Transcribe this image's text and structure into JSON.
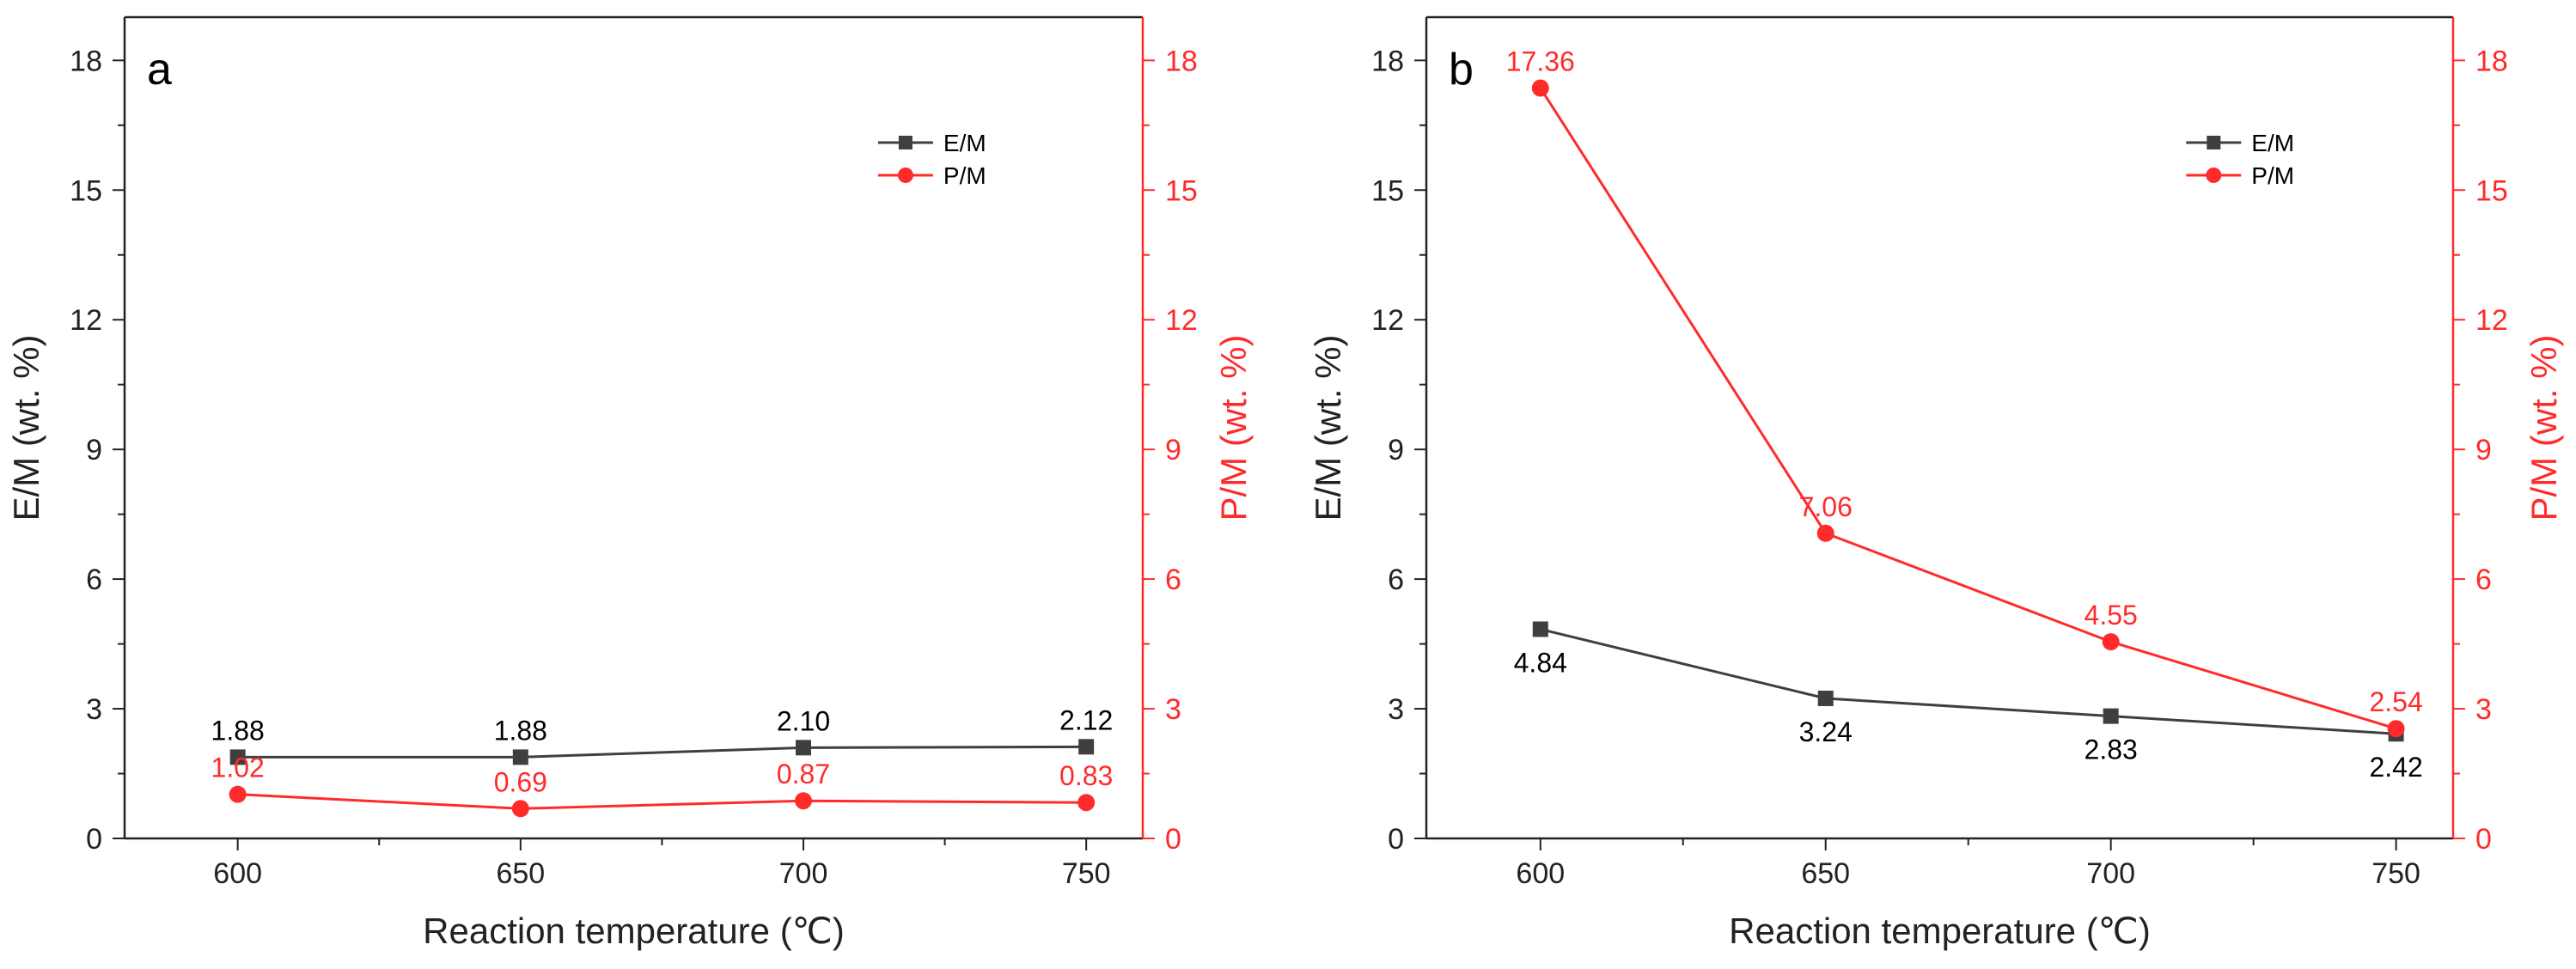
{
  "colors": {
    "left_series": "#3f3f3f",
    "right_series": "#ff2b2b",
    "axis": "#222222",
    "right_axis": "#ff2b2b"
  },
  "chart_data": [
    {
      "type": "line",
      "panel_label": "a",
      "xlabel": "Reaction temperature (℃)",
      "ylabel_left": "E/M (wt. %)",
      "ylabel_right": "P/M (wt. %)",
      "x": [
        600,
        650,
        700,
        750
      ],
      "xlim": [
        580,
        760
      ],
      "ylim_left": [
        0,
        19
      ],
      "ylim_right": [
        0,
        19
      ],
      "yticks": [
        0,
        3,
        6,
        9,
        12,
        15,
        18
      ],
      "legend_position": "top-right",
      "grid": false,
      "series": [
        {
          "name": "E/M",
          "axis": "left",
          "marker": "square",
          "values": [
            1.88,
            1.88,
            2.1,
            2.12
          ],
          "labels": [
            "1.88",
            "1.88",
            "2.10",
            "2.12"
          ],
          "label_side": [
            "above",
            "above",
            "above",
            "above"
          ]
        },
        {
          "name": "P/M",
          "axis": "right",
          "marker": "circle",
          "values": [
            1.02,
            0.69,
            0.87,
            0.83
          ],
          "labels": [
            "1.02",
            "0.69",
            "0.87",
            "0.83"
          ],
          "label_side": [
            "above",
            "above",
            "above",
            "above"
          ]
        }
      ]
    },
    {
      "type": "line",
      "panel_label": "b",
      "xlabel": "Reaction temperature (℃)",
      "ylabel_left": "E/M (wt. %)",
      "ylabel_right": "P/M (wt. %)",
      "x": [
        600,
        650,
        700,
        750
      ],
      "xlim": [
        580,
        760
      ],
      "ylim_left": [
        0,
        19
      ],
      "ylim_right": [
        0,
        19
      ],
      "yticks": [
        0,
        3,
        6,
        9,
        12,
        15,
        18
      ],
      "legend_position": "top-right",
      "grid": false,
      "series": [
        {
          "name": "E/M",
          "axis": "left",
          "marker": "square",
          "values": [
            4.84,
            3.24,
            2.83,
            2.42
          ],
          "labels": [
            "4.84",
            "3.24",
            "2.83",
            "2.42"
          ],
          "label_side": [
            "below",
            "below",
            "below",
            "below"
          ]
        },
        {
          "name": "P/M",
          "axis": "right",
          "marker": "circle",
          "values": [
            17.36,
            7.06,
            4.55,
            2.54
          ],
          "labels": [
            "17.36",
            "7.06",
            "4.55",
            "2.54"
          ],
          "label_side": [
            "above",
            "above",
            "above",
            "above"
          ]
        }
      ]
    }
  ]
}
